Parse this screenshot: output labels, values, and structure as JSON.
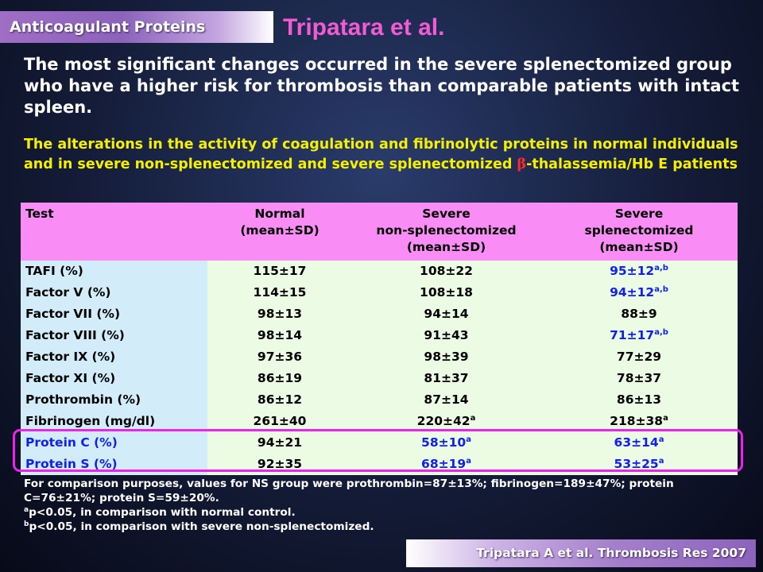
{
  "tag_label": "Anticoagulant Proteins",
  "title": "Tripatara et al.",
  "headline": "The most significant changes occurred in the severe splenectomized group who have a higher risk for thrombosis than comparable patients with intact spleen.",
  "subhead": {
    "before": "The alterations in the activity of coagulation and fibrinolytic proteins in normal individuals and in severe non-splenectomized and severe splenectomized ",
    "beta": "β",
    "after": "-thalassemia/Hb E patients"
  },
  "colors": {
    "header_bg": "#fa8cf6",
    "label_bg": "#d2ecfa",
    "value_bg": "#ecfbe4",
    "title": "#f25bd4",
    "subhead": "#f6f000",
    "highlight": "#ee22ee",
    "blue_text": "#1020ee"
  },
  "table": {
    "headers": [
      [
        "Test"
      ],
      [
        "Normal",
        "(mean±SD)"
      ],
      [
        "Severe",
        "non-splenectomized",
        "(mean±SD)"
      ],
      [
        "Severe",
        "splenectomized",
        "(mean±SD)"
      ]
    ],
    "rows": [
      {
        "name": "tafi",
        "label": "TAFI (%)",
        "normal": {
          "v": "115±17"
        },
        "nonsplen": {
          "v": "108±22"
        },
        "splen": {
          "v": "95±12",
          "sup": "a,b",
          "blue": true
        }
      },
      {
        "name": "factor-v",
        "label": "Factor V (%)",
        "normal": {
          "v": "114±15"
        },
        "nonsplen": {
          "v": "108±18"
        },
        "splen": {
          "v": "94±12",
          "sup": "a,b",
          "blue": true
        }
      },
      {
        "name": "factor-vii",
        "label": "Factor VII (%)",
        "normal": {
          "v": "98±13"
        },
        "nonsplen": {
          "v": "94±14"
        },
        "splen": {
          "v": "88±9"
        }
      },
      {
        "name": "factor-viii",
        "label": "Factor VIII (%)",
        "normal": {
          "v": "98±14"
        },
        "nonsplen": {
          "v": "91±43"
        },
        "splen": {
          "v": "71±17",
          "sup": "a,b",
          "blue": true
        }
      },
      {
        "name": "factor-ix",
        "label": "Factor IX (%)",
        "normal": {
          "v": "97±36"
        },
        "nonsplen": {
          "v": "98±39"
        },
        "splen": {
          "v": "77±29"
        }
      },
      {
        "name": "factor-xi",
        "label": "Factor XI (%)",
        "normal": {
          "v": "86±19"
        },
        "nonsplen": {
          "v": "81±37"
        },
        "splen": {
          "v": "78±37"
        }
      },
      {
        "name": "prothrombin",
        "label": "Prothrombin (%)",
        "normal": {
          "v": "86±12"
        },
        "nonsplen": {
          "v": "87±14"
        },
        "splen": {
          "v": "86±13"
        }
      },
      {
        "name": "fibrinogen",
        "label": "Fibrinogen (mg/dl)",
        "normal": {
          "v": "261±40"
        },
        "nonsplen": {
          "v": "220±42",
          "sup": "a"
        },
        "splen": {
          "v": "218±38",
          "sup": "a"
        }
      },
      {
        "name": "protein-c",
        "label": "Protein C (%)",
        "label_blue": true,
        "normal": {
          "v": "94±21"
        },
        "nonsplen": {
          "v": "58±10",
          "sup": "a",
          "blue": true
        },
        "splen": {
          "v": "63±14",
          "sup": "a",
          "blue": true
        }
      },
      {
        "name": "protein-s",
        "label": "Protein S (%)",
        "label_blue": true,
        "normal": {
          "v": "92±35"
        },
        "nonsplen": {
          "v": "68±19",
          "sup": "a",
          "blue": true
        },
        "splen": {
          "v": "53±25",
          "sup": "a",
          "blue": true
        }
      }
    ]
  },
  "footnotes": {
    "comparison": "For comparison purposes, values for NS group were prothrombin=87±13%; fibrinogen=189±47%; protein C=76±21%; protein S=59±20%.",
    "a_mark": "a",
    "a_text": "p<0.05, in comparison with normal control.",
    "b_mark": "b",
    "b_text": "p<0.05, in comparison with severe non-splenectomized."
  },
  "citation": "Tripatara A et al. Thrombosis Res 2007"
}
